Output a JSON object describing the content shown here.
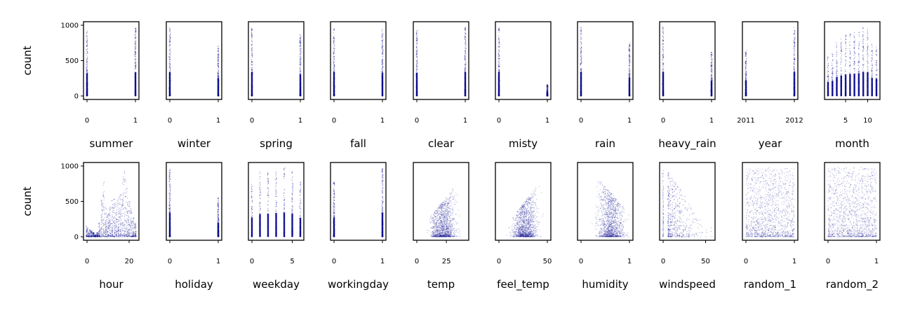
{
  "chart_data": {
    "type": "scatter",
    "ylabel": "count",
    "ylim": [
      0,
      1000
    ],
    "yticks": [
      0,
      500,
      1000
    ],
    "marker_color": "#00008b",
    "grid": false,
    "legend": "none",
    "panels": [
      {
        "xlabel": "summer",
        "kind": "binary",
        "xlim": [
          0,
          1
        ],
        "xticks": [
          {
            "v": 0,
            "label": "0"
          },
          {
            "v": 1,
            "label": "1"
          }
        ],
        "max_at": [
          {
            "x": 0,
            "max": 920
          },
          {
            "x": 1,
            "max": 960
          }
        ]
      },
      {
        "xlabel": "winter",
        "kind": "binary",
        "xlim": [
          0,
          1
        ],
        "xticks": [
          {
            "v": 0,
            "label": "0"
          },
          {
            "v": 1,
            "label": "1"
          }
        ],
        "max_at": [
          {
            "x": 0,
            "max": 970
          },
          {
            "x": 1,
            "max": 720
          }
        ]
      },
      {
        "xlabel": "spring",
        "kind": "binary",
        "xlim": [
          0,
          1
        ],
        "xticks": [
          {
            "v": 0,
            "label": "0"
          },
          {
            "v": 1,
            "label": "1"
          }
        ],
        "max_at": [
          {
            "x": 0,
            "max": 970
          },
          {
            "x": 1,
            "max": 880
          }
        ]
      },
      {
        "xlabel": "fall",
        "kind": "binary",
        "xlim": [
          0,
          1
        ],
        "xticks": [
          {
            "v": 0,
            "label": "0"
          },
          {
            "v": 1,
            "label": "1"
          }
        ],
        "max_at": [
          {
            "x": 0,
            "max": 970
          },
          {
            "x": 1,
            "max": 950
          }
        ]
      },
      {
        "xlabel": "clear",
        "kind": "binary",
        "xlim": [
          0,
          1
        ],
        "xticks": [
          {
            "v": 0,
            "label": "0"
          },
          {
            "v": 1,
            "label": "1"
          }
        ],
        "max_at": [
          {
            "x": 0,
            "max": 930
          },
          {
            "x": 1,
            "max": 975
          }
        ]
      },
      {
        "xlabel": "misty",
        "kind": "binary",
        "xlim": [
          0,
          1
        ],
        "xticks": [
          {
            "v": 0,
            "label": "0"
          },
          {
            "v": 1,
            "label": "1"
          }
        ],
        "max_at": [
          {
            "x": 0,
            "max": 970
          },
          {
            "x": 1,
            "max": 160
          }
        ]
      },
      {
        "xlabel": "rain",
        "kind": "binary",
        "xlim": [
          0,
          1
        ],
        "xticks": [
          {
            "v": 0,
            "label": "0"
          },
          {
            "v": 1,
            "label": "1"
          }
        ],
        "max_at": [
          {
            "x": 0,
            "max": 975
          },
          {
            "x": 1,
            "max": 750
          }
        ]
      },
      {
        "xlabel": "heavy_rain",
        "kind": "binary",
        "xlim": [
          0,
          1
        ],
        "xticks": [
          {
            "v": 0,
            "label": "0"
          },
          {
            "v": 1,
            "label": "1"
          }
        ],
        "max_at": [
          {
            "x": 0,
            "max": 975
          },
          {
            "x": 1,
            "max": 620
          }
        ]
      },
      {
        "xlabel": "year",
        "kind": "binary",
        "xlim": [
          2011,
          2012
        ],
        "xticks": [
          {
            "v": 2011,
            "label": "2011"
          },
          {
            "v": 2012,
            "label": "2012"
          }
        ],
        "max_at": [
          {
            "x": 2011,
            "max": 640
          },
          {
            "x": 2012,
            "max": 975
          }
        ]
      },
      {
        "xlabel": "month",
        "kind": "discrete",
        "xlim": [
          1,
          12
        ],
        "xticks": [
          {
            "v": 5,
            "label": "5"
          },
          {
            "v": 10,
            "label": "10"
          }
        ],
        "values": [
          1,
          2,
          3,
          4,
          5,
          6,
          7,
          8,
          9,
          10,
          11,
          12
        ],
        "max_at": [
          {
            "x": 1,
            "max": 560
          },
          {
            "x": 2,
            "max": 610
          },
          {
            "x": 3,
            "max": 760
          },
          {
            "x": 4,
            "max": 820
          },
          {
            "x": 5,
            "max": 870
          },
          {
            "x": 6,
            "max": 890
          },
          {
            "x": 7,
            "max": 900
          },
          {
            "x": 8,
            "max": 920
          },
          {
            "x": 9,
            "max": 975
          },
          {
            "x": 10,
            "max": 960
          },
          {
            "x": 11,
            "max": 730
          },
          {
            "x": 12,
            "max": 700
          }
        ]
      },
      {
        "xlabel": "hour",
        "kind": "hourly",
        "xlim": [
          0,
          23
        ],
        "xticks": [
          {
            "v": 0,
            "label": "0"
          },
          {
            "v": 20,
            "label": "20"
          }
        ]
      },
      {
        "xlabel": "holiday",
        "kind": "binary",
        "xlim": [
          0,
          1
        ],
        "xticks": [
          {
            "v": 0,
            "label": "0"
          },
          {
            "v": 1,
            "label": "1"
          }
        ],
        "max_at": [
          {
            "x": 0,
            "max": 975
          },
          {
            "x": 1,
            "max": 560
          }
        ]
      },
      {
        "xlabel": "weekday",
        "kind": "discrete",
        "xlim": [
          0,
          6
        ],
        "xticks": [
          {
            "v": 0,
            "label": "0"
          },
          {
            "v": 5,
            "label": "5"
          }
        ],
        "values": [
          0,
          1,
          2,
          3,
          4,
          5,
          6
        ],
        "max_at": [
          {
            "x": 0,
            "max": 780
          },
          {
            "x": 1,
            "max": 920
          },
          {
            "x": 2,
            "max": 930
          },
          {
            "x": 3,
            "max": 960
          },
          {
            "x": 4,
            "max": 975
          },
          {
            "x": 5,
            "max": 940
          },
          {
            "x": 6,
            "max": 770
          }
        ]
      },
      {
        "xlabel": "workingday",
        "kind": "binary",
        "xlim": [
          0,
          1
        ],
        "xticks": [
          {
            "v": 0,
            "label": "0"
          },
          {
            "v": 1,
            "label": "1"
          }
        ],
        "max_at": [
          {
            "x": 0,
            "max": 780
          },
          {
            "x": 1,
            "max": 975
          }
        ]
      },
      {
        "xlabel": "temp",
        "kind": "temp",
        "xlim": [
          0,
          41
        ],
        "xticks": [
          {
            "v": 0,
            "label": "0"
          },
          {
            "v": 25,
            "label": "25"
          }
        ]
      },
      {
        "xlabel": "feel_temp",
        "kind": "feel",
        "xlim": [
          0,
          50
        ],
        "xticks": [
          {
            "v": 0,
            "label": "0"
          },
          {
            "v": 50,
            "label": "50"
          }
        ]
      },
      {
        "xlabel": "humidity",
        "kind": "humidity",
        "xlim": [
          0,
          1
        ],
        "xticks": [
          {
            "v": 0,
            "label": "0"
          },
          {
            "v": 1,
            "label": "1"
          }
        ]
      },
      {
        "xlabel": "windspeed",
        "kind": "wind",
        "xlim": [
          0,
          57
        ],
        "xticks": [
          {
            "v": 0,
            "label": "0"
          },
          {
            "v": 50,
            "label": "50"
          }
        ]
      },
      {
        "xlabel": "random_1",
        "kind": "uniform",
        "xlim": [
          0,
          1
        ],
        "xticks": [
          {
            "v": 0,
            "label": "0"
          },
          {
            "v": 1,
            "label": "1"
          }
        ]
      },
      {
        "xlabel": "random_2",
        "kind": "uniform",
        "xlim": [
          0,
          1
        ],
        "xticks": [
          {
            "v": 0,
            "label": "0"
          },
          {
            "v": 1,
            "label": "1"
          }
        ]
      }
    ]
  }
}
